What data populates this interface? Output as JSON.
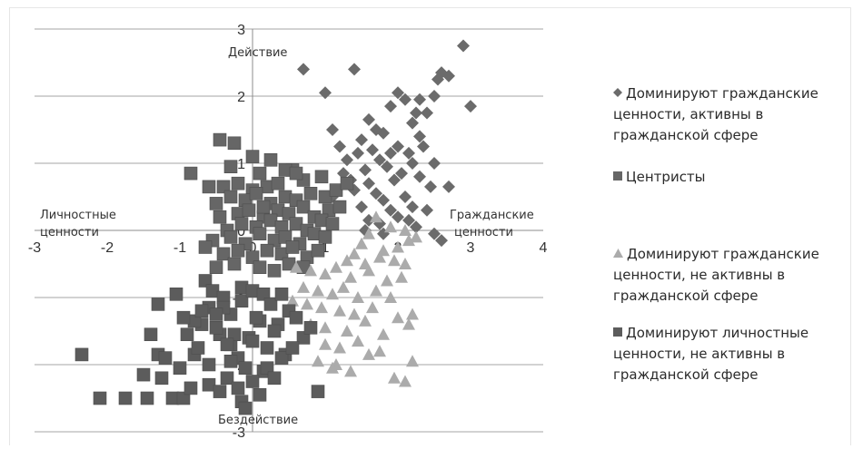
{
  "chart_data": {
    "type": "scatter",
    "xlim": [
      -3,
      4
    ],
    "ylim": [
      -3,
      3
    ],
    "x_ticks": [
      "-3",
      "-2",
      "-1",
      "0",
      "1",
      "2",
      "3",
      "4"
    ],
    "y_ticks": [
      "3",
      "2",
      "1",
      "0",
      "-1",
      "-2",
      "-3"
    ],
    "grid": "horizontal",
    "legend_position": "right",
    "axis_annotations": {
      "top": "Действие",
      "bottom": "Бездействие",
      "left_line1": "Личностные",
      "left_line2": "ценности",
      "right_line1": "Гражданские",
      "right_line2": "ценности"
    },
    "series": [
      {
        "name": "Доминируют гражданские ценности, активны в гражданской сфере",
        "marker": "diamond",
        "color": "#6b6b6b",
        "x": [
          2.9,
          2.6,
          0.7,
          1.4,
          1.0,
          2.0,
          2.1,
          2.3,
          2.5,
          1.9,
          3.0,
          2.4,
          2.55,
          2.7,
          1.1,
          1.6,
          1.8,
          2.2,
          2.25,
          1.2,
          1.5,
          1.7,
          1.9,
          2.0,
          2.3,
          1.3,
          1.45,
          1.65,
          1.75,
          2.15,
          2.35,
          2.5,
          1.25,
          1.35,
          1.55,
          1.85,
          2.05,
          2.2,
          1.4,
          1.6,
          1.7,
          1.95,
          2.3,
          2.45,
          1.5,
          1.8,
          1.9,
          2.1,
          2.2,
          2.7,
          1.6,
          1.75,
          2.0,
          2.4,
          1.55,
          1.8,
          2.15,
          2.6,
          2.5,
          1.1,
          2.25
        ],
        "y": [
          2.75,
          2.35,
          2.4,
          2.4,
          2.05,
          2.05,
          1.95,
          1.95,
          2.0,
          1.85,
          1.85,
          1.75,
          2.25,
          2.3,
          1.5,
          1.65,
          1.45,
          1.6,
          1.75,
          1.25,
          1.35,
          1.5,
          1.15,
          1.25,
          1.4,
          1.05,
          1.15,
          1.2,
          1.05,
          1.15,
          1.25,
          1.0,
          0.85,
          0.75,
          0.9,
          0.95,
          0.85,
          1.0,
          0.6,
          0.7,
          0.55,
          0.75,
          0.8,
          0.65,
          0.35,
          0.45,
          0.3,
          0.5,
          0.35,
          0.65,
          0.15,
          0.1,
          0.2,
          0.3,
          0.0,
          -0.05,
          0.15,
          -0.15,
          -0.05,
          0.5,
          0.05
        ]
      },
      {
        "name": "Центристы",
        "marker": "square",
        "color": "#666666",
        "x": [
          -0.45,
          -0.25,
          -0.85,
          -0.6,
          0.1,
          0.55,
          -0.4,
          -0.2,
          0.0,
          0.2,
          0.35,
          0.7,
          0.95,
          -0.5,
          -0.3,
          -0.1,
          0.05,
          0.25,
          0.45,
          0.6,
          0.8,
          1.0,
          1.15,
          -0.45,
          -0.2,
          -0.05,
          0.15,
          0.35,
          0.5,
          0.7,
          0.85,
          1.05,
          1.2,
          -0.35,
          -0.15,
          0.05,
          0.25,
          0.4,
          0.6,
          0.75,
          0.95,
          1.1,
          -0.55,
          -0.3,
          -0.1,
          0.1,
          0.3,
          0.45,
          0.65,
          0.85,
          1.0,
          -0.65,
          -0.4,
          -0.2,
          0.0,
          0.2,
          0.4,
          0.55,
          0.75,
          0.9,
          -0.5,
          -0.25,
          0.1,
          0.3,
          0.5,
          0.7,
          -0.3,
          0.0,
          0.25,
          0.45,
          1.3,
          0.6,
          0.15
        ],
        "y": [
          1.35,
          1.3,
          0.85,
          0.65,
          0.85,
          0.9,
          0.65,
          0.7,
          0.6,
          0.65,
          0.7,
          0.75,
          0.8,
          0.4,
          0.5,
          0.45,
          0.55,
          0.4,
          0.5,
          0.45,
          0.55,
          0.5,
          0.6,
          0.2,
          0.25,
          0.3,
          0.2,
          0.3,
          0.25,
          0.35,
          0.2,
          0.3,
          0.35,
          0.0,
          0.1,
          0.05,
          0.15,
          0.05,
          0.1,
          0.0,
          0.15,
          0.1,
          -0.15,
          -0.1,
          -0.2,
          -0.05,
          -0.15,
          -0.1,
          -0.2,
          -0.05,
          -0.1,
          -0.25,
          -0.35,
          -0.3,
          -0.4,
          -0.3,
          -0.35,
          -0.25,
          -0.4,
          -0.3,
          -0.55,
          -0.5,
          -0.55,
          -0.6,
          -0.5,
          -0.55,
          0.95,
          1.1,
          1.05,
          0.9,
          0.7,
          0.85,
          0.35
        ]
      },
      {
        "name": "Доминируют гражданские ценности, не активны в гражданской сфере",
        "marker": "triangle",
        "color": "#ababab",
        "x": [
          1.7,
          1.9,
          2.1,
          2.15,
          1.5,
          1.6,
          1.8,
          2.0,
          2.25,
          1.3,
          1.4,
          1.55,
          1.75,
          1.95,
          2.1,
          0.6,
          0.8,
          1.0,
          1.15,
          1.35,
          1.6,
          1.85,
          2.05,
          0.7,
          0.9,
          1.1,
          1.25,
          1.45,
          1.7,
          1.9,
          0.55,
          0.75,
          0.95,
          1.2,
          1.4,
          1.65,
          2.0,
          2.2,
          0.8,
          1.0,
          1.3,
          1.55,
          1.8,
          2.15,
          1.0,
          1.2,
          1.45,
          1.75,
          0.9,
          1.15,
          1.6,
          2.2,
          1.35,
          1.1,
          1.95,
          2.1
        ],
        "y": [
          0.2,
          0.05,
          0.0,
          -0.15,
          -0.2,
          -0.05,
          -0.3,
          -0.25,
          -0.1,
          -0.45,
          -0.35,
          -0.5,
          -0.4,
          -0.45,
          -0.5,
          -0.55,
          -0.6,
          -0.65,
          -0.55,
          -0.7,
          -0.6,
          -0.75,
          -0.7,
          -0.85,
          -0.9,
          -0.95,
          -0.85,
          -1.0,
          -0.9,
          -1.0,
          -1.05,
          -1.1,
          -1.15,
          -1.2,
          -1.25,
          -1.15,
          -1.3,
          -1.25,
          -1.4,
          -1.45,
          -1.5,
          -1.35,
          -1.55,
          -1.4,
          -1.7,
          -1.75,
          -1.65,
          -1.8,
          -1.95,
          -2.0,
          -1.85,
          -1.95,
          -2.1,
          -2.05,
          -2.2,
          -2.25
        ]
      },
      {
        "name": "Доминируют личностные ценности, не активны в гражданской сфере",
        "marker": "square",
        "color": "#5c5c5c",
        "x": [
          -2.35,
          -2.1,
          -1.75,
          -1.45,
          -1.4,
          -1.25,
          -1.1,
          -0.95,
          -0.8,
          -0.65,
          -1.5,
          -1.3,
          -1.0,
          -0.85,
          -0.7,
          -0.55,
          -0.4,
          -1.2,
          -0.9,
          -0.75,
          -0.6,
          -0.45,
          -0.3,
          -0.15,
          -1.05,
          -0.8,
          -0.6,
          -0.45,
          -0.3,
          -0.15,
          0.0,
          0.15,
          -0.7,
          -0.5,
          -0.35,
          -0.2,
          -0.05,
          0.1,
          0.25,
          0.4,
          -0.6,
          -0.4,
          -0.25,
          -0.1,
          0.05,
          0.2,
          0.35,
          0.5,
          -0.5,
          -0.3,
          -0.15,
          0.0,
          0.15,
          0.3,
          0.45,
          0.6,
          0.7,
          -0.35,
          -0.2,
          0.0,
          0.2,
          0.4,
          0.55,
          0.8,
          -0.1,
          0.1,
          0.3,
          -1.3,
          -0.95,
          0.9
        ],
        "y": [
          -1.85,
          -2.5,
          -2.5,
          -2.5,
          -1.55,
          -2.2,
          -2.5,
          -2.5,
          -1.85,
          -0.75,
          -2.15,
          -1.85,
          -2.05,
          -2.35,
          -1.4,
          -0.9,
          -1.0,
          -1.9,
          -1.55,
          -1.75,
          -2.3,
          -1.55,
          -1.25,
          -0.85,
          -0.95,
          -1.35,
          -1.15,
          -2.4,
          -1.7,
          -1.05,
          -0.9,
          -0.95,
          -1.2,
          -1.45,
          -2.2,
          -1.9,
          -1.6,
          -1.35,
          -1.1,
          -0.95,
          -2.0,
          -1.15,
          -1.55,
          -2.05,
          -1.3,
          -1.75,
          -1.4,
          -1.2,
          -1.25,
          -1.95,
          -2.55,
          -1.65,
          -2.1,
          -1.5,
          -1.85,
          -1.3,
          -1.6,
          -1.7,
          -2.35,
          -2.25,
          -2.05,
          -1.9,
          -1.75,
          -1.45,
          -2.65,
          -2.45,
          -2.2,
          -1.1,
          -1.3,
          -2.4
        ]
      }
    ]
  }
}
